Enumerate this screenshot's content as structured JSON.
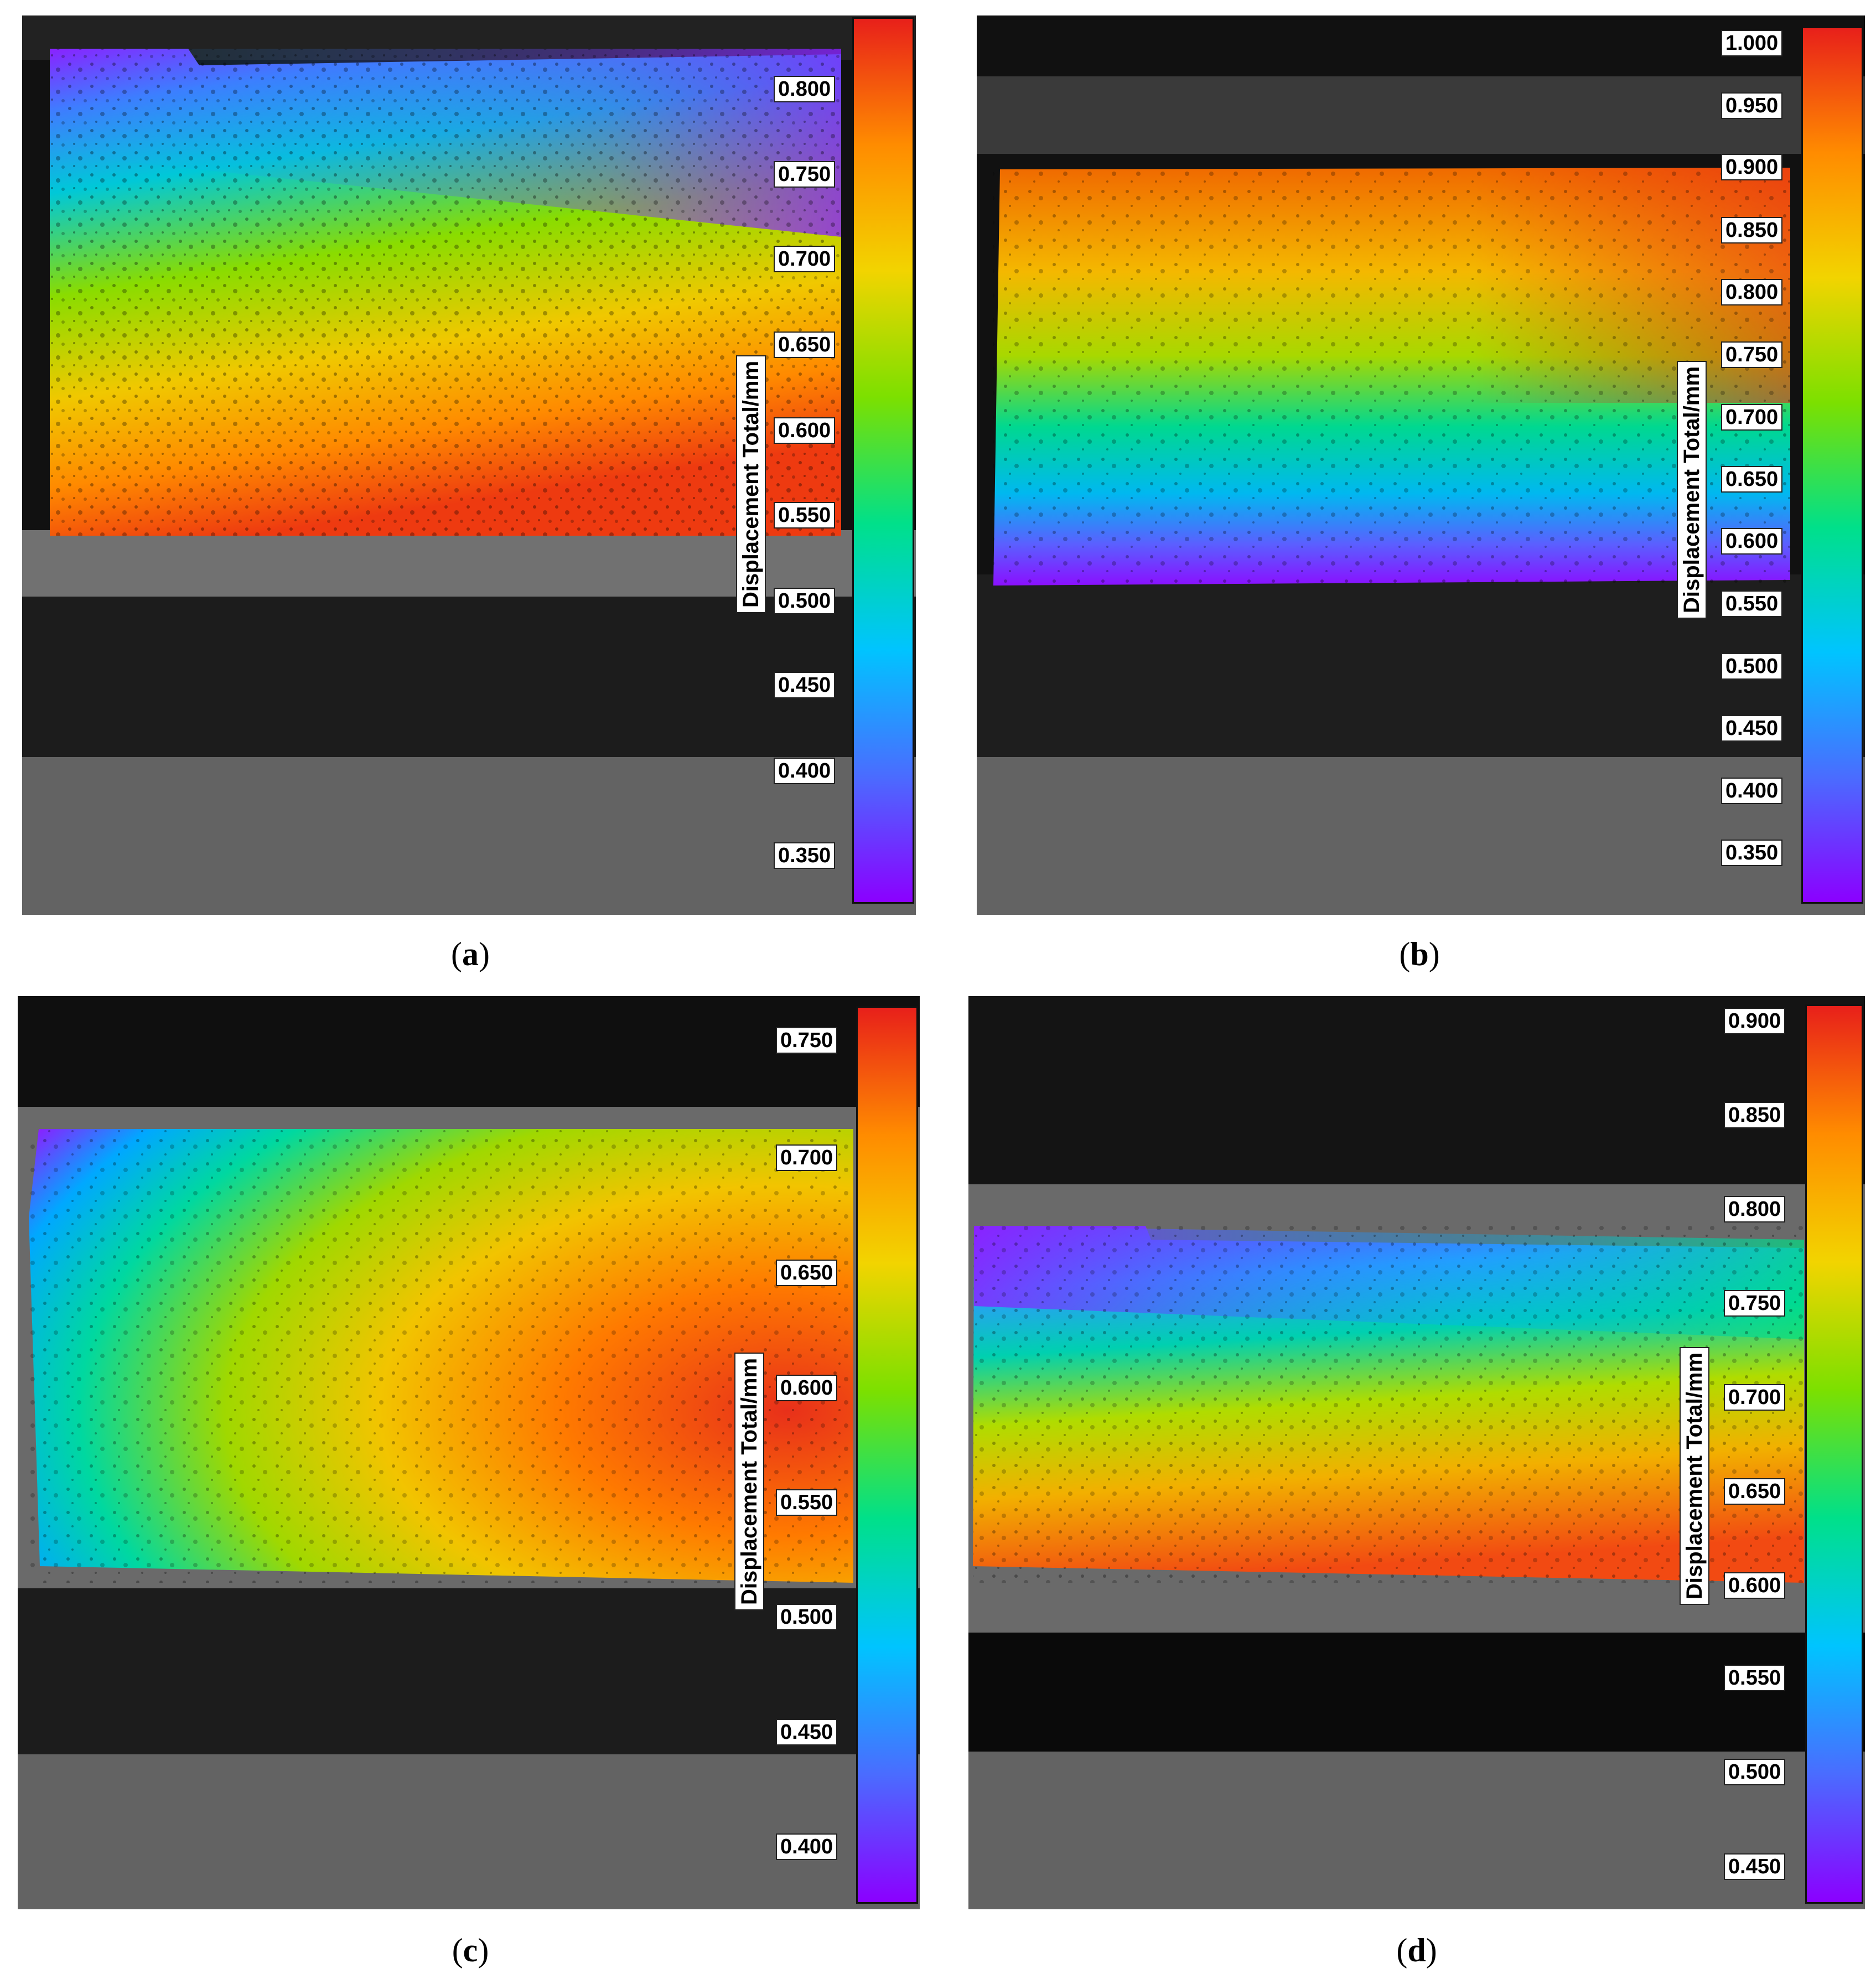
{
  "colorbar_label": "Displacement Total/mm",
  "panels": [
    {
      "id": "a",
      "caption_letter": "a",
      "ticks": [
        "0.800",
        "0.750",
        "0.700",
        "0.650",
        "0.600",
        "0.550",
        "0.500",
        "0.450",
        "0.400",
        "0.350"
      ],
      "value_range": [
        0.32,
        0.83
      ],
      "field_orientation": "low at top, high at bottom-left"
    },
    {
      "id": "b",
      "caption_letter": "b",
      "ticks": [
        "1.000",
        "0.950",
        "0.900",
        "0.850",
        "0.800",
        "0.750",
        "0.700",
        "0.650",
        "0.600",
        "0.550",
        "0.500",
        "0.450",
        "0.400",
        "0.350"
      ],
      "value_range": [
        0.32,
        1.01
      ],
      "field_orientation": "high at top, low at bottom"
    },
    {
      "id": "c",
      "caption_letter": "c",
      "ticks": [
        "0.750",
        "0.700",
        "0.650",
        "0.600",
        "0.550",
        "0.500",
        "0.450",
        "0.400"
      ],
      "value_range": [
        0.37,
        0.77
      ],
      "field_orientation": "low at top-left, high at right"
    },
    {
      "id": "d",
      "caption_letter": "d",
      "ticks": [
        "0.900",
        "0.850",
        "0.800",
        "0.750",
        "0.700",
        "0.650",
        "0.600",
        "0.550",
        "0.500",
        "0.450"
      ],
      "value_range": [
        0.43,
        0.91
      ],
      "field_orientation": "low at top, high at bottom"
    }
  ],
  "colors": {
    "colormap": [
      "#8b00ff",
      "#4a6cff",
      "#00c4ff",
      "#00e08a",
      "#7ce000",
      "#f2d400",
      "#ff8c00",
      "#e8201a"
    ],
    "gray_band": "#636363",
    "background_speckle": "#1a1a1a"
  }
}
